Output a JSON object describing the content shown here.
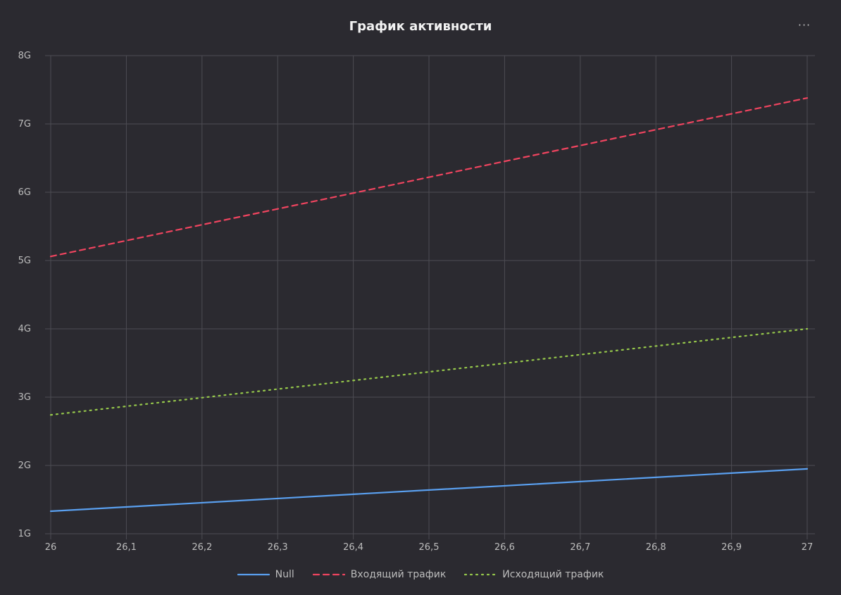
{
  "header": {
    "title": "График активности",
    "menu_icon": "more-horizontal-icon",
    "menu_label": "···"
  },
  "colors": {
    "background": "#2b2a30",
    "grid": "#4d4c53",
    "tick_text": "#bdbdbd"
  },
  "chart_data": {
    "type": "line",
    "title": "График активности",
    "xlabel": "",
    "ylabel": "",
    "xlim": [
      26,
      27
    ],
    "ylim": [
      1,
      8
    ],
    "grid": true,
    "legend_position": "bottom",
    "x_ticks": [
      "26",
      "26,1",
      "26,2",
      "26,3",
      "26,4",
      "26,5",
      "26,6",
      "26,7",
      "26,8",
      "26,9",
      "27"
    ],
    "y_ticks": [
      "1G",
      "2G",
      "3G",
      "4G",
      "5G",
      "6G",
      "7G",
      "8G"
    ],
    "series": [
      {
        "name": "Null",
        "x": [
          26,
          27
        ],
        "values": [
          1.33,
          1.95
        ],
        "color": "#5aa0f0",
        "dash": "solid"
      },
      {
        "name": "Входящий трафик",
        "x": [
          26,
          27
        ],
        "values": [
          5.06,
          7.38
        ],
        "color": "#f0445f",
        "dash": "dashed"
      },
      {
        "name": "Исходящий трафик",
        "x": [
          26,
          27
        ],
        "values": [
          2.74,
          4.0
        ],
        "color": "#96c84b",
        "dash": "dotted"
      }
    ]
  }
}
